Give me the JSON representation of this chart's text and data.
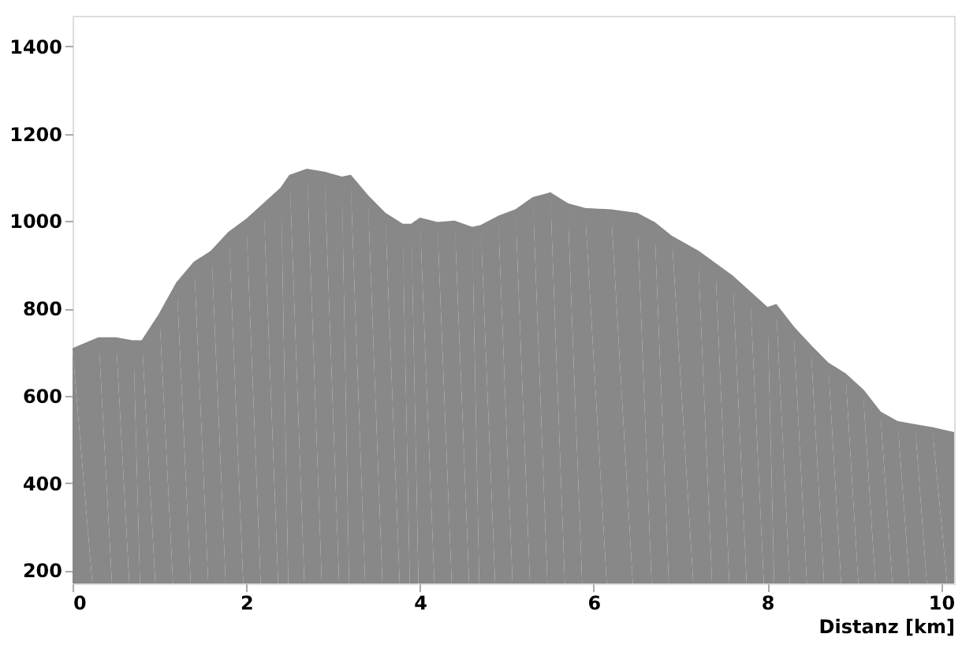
{
  "chart_data": {
    "type": "area",
    "xlabel": "Distanz [km]",
    "x": [
      0,
      0.3,
      0.5,
      0.7,
      0.8,
      1.0,
      1.2,
      1.4,
      1.6,
      1.8,
      2.0,
      2.2,
      2.4,
      2.5,
      2.7,
      2.9,
      3.1,
      3.2,
      3.4,
      3.6,
      3.8,
      3.9,
      4.0,
      4.2,
      4.4,
      4.6,
      4.7,
      4.9,
      5.1,
      5.3,
      5.5,
      5.7,
      5.9,
      6.2,
      6.5,
      6.7,
      6.9,
      7.2,
      7.4,
      7.6,
      7.8,
      8.0,
      8.1,
      8.3,
      8.5,
      8.7,
      8.9,
      9.1,
      9.3,
      9.5,
      9.7,
      9.9,
      10.15
    ],
    "series": [
      {
        "color": "#888888",
        "values": [
          707,
          732,
          732,
          725,
          725,
          786,
          858,
          905,
          931,
          974,
          1003,
          1039,
          1075,
          1104,
          1118,
          1111,
          1100,
          1104,
          1057,
          1017,
          992,
          992,
          1006,
          996,
          999,
          985,
          989,
          1010,
          1025,
          1053,
          1064,
          1039,
          1028,
          1025,
          1017,
          996,
          964,
          931,
          902,
          873,
          837,
          801,
          808,
          757,
          714,
          674,
          649,
          613,
          562,
          540,
          533,
          526,
          515
        ]
      }
    ],
    "xlim": [
      0,
      10.15
    ],
    "xticks": [
      0,
      2,
      4,
      6,
      8,
      10
    ],
    "ylim": [
      170,
      1470
    ],
    "yticks": [
      200,
      400,
      600,
      800,
      1000,
      1200,
      1400
    ],
    "grid": false,
    "legend": false
  }
}
